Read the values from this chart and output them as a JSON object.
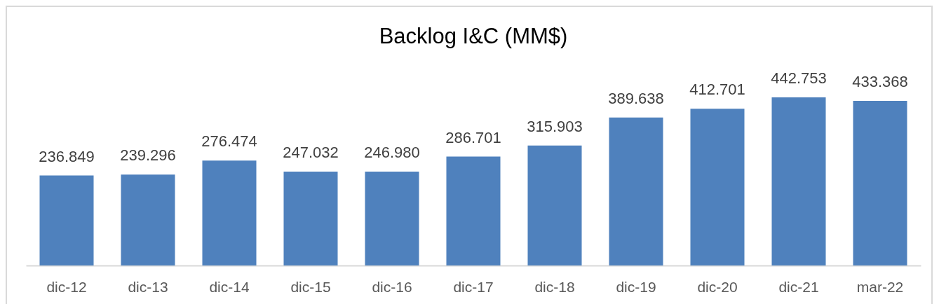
{
  "chart_data": {
    "type": "bar",
    "title": "Backlog I&C (MM$)",
    "categories": [
      "dic-12",
      "dic-13",
      "dic-14",
      "dic-15",
      "dic-16",
      "dic-17",
      "dic-18",
      "dic-19",
      "dic-20",
      "dic-21",
      "mar-22"
    ],
    "values": [
      236.849,
      239.296,
      276.474,
      247.032,
      246.98,
      286.701,
      315.903,
      389.638,
      412.701,
      442.753,
      433.368
    ],
    "value_labels": [
      "236.849",
      "239.296",
      "276.474",
      "247.032",
      "246.980",
      "286.701",
      "315.903",
      "389.638",
      "412.701",
      "442.753",
      "433.368"
    ],
    "color": "#4f81bd",
    "grid": false
  }
}
